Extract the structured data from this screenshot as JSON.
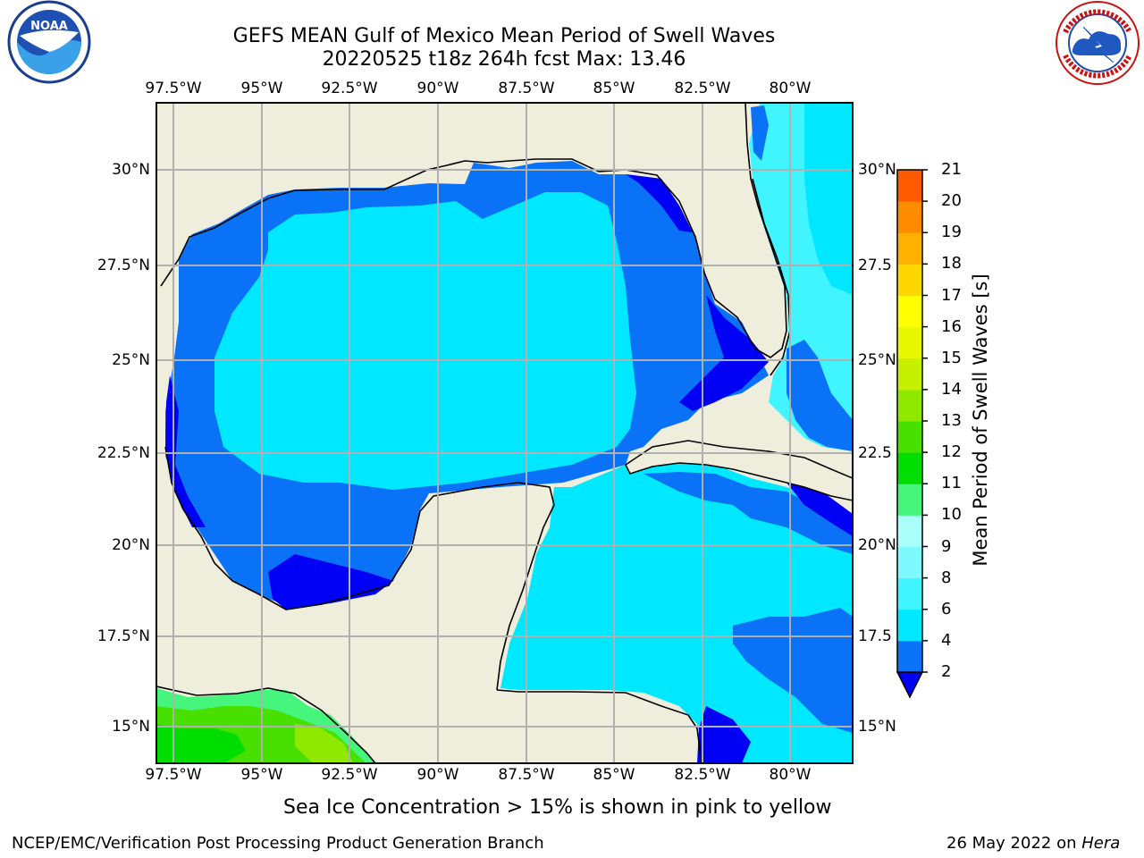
{
  "header": {
    "title": "GEFS MEAN Gulf of Mexico Mean Period of Swell Waves",
    "subtitle": "20220525 t18z 264h fcst   Max: 13.46"
  },
  "logos": {
    "left": {
      "icon": "noaa-logo-icon",
      "text": "NOAA"
    },
    "right": {
      "icon": "nws-logo-icon",
      "text": "NATIONAL WEATHER SERVICE"
    }
  },
  "map": {
    "lon_labels": [
      "97.5°W",
      "95°W",
      "92.5°W",
      "90°W",
      "87.5°W",
      "85°W",
      "82.5°W",
      "80°W"
    ],
    "lat_labels_left": [
      "30°N",
      "27.5°N",
      "25°N",
      "22.5°N",
      "20°N",
      "17.5°N",
      "15°N"
    ],
    "lat_labels_right": [
      "30°N",
      "27.5",
      "25°N",
      "22.5",
      "20°N",
      "17.5",
      "15°N"
    ]
  },
  "colorbar": {
    "title": "Mean Period of Swell Waves [s]",
    "ticks": [
      "2",
      "4",
      "6",
      "8",
      "9",
      "10",
      "11",
      "12",
      "13",
      "14",
      "15",
      "16",
      "17",
      "18",
      "19",
      "20",
      "21"
    ],
    "colors": [
      "#0a72f7",
      "#00e8ff",
      "#40f5ff",
      "#7efaff",
      "#aafffb",
      "#45f57c",
      "#00dd00",
      "#48e000",
      "#8fe800",
      "#c6f000",
      "#e8f800",
      "#ffff00",
      "#ffd700",
      "#ffb000",
      "#ff8c00",
      "#ff5a00",
      "#ff2000",
      "#ff0000"
    ],
    "under_color": "#0000f5"
  },
  "chart_data": {
    "type": "heatmap",
    "title": "GEFS MEAN Gulf of Mexico Mean Period of Swell Waves",
    "subtitle": "20220525 t18z 264h fcst   Max: 13.46",
    "units": "s",
    "x_range_lon": [
      -98.5,
      -78.75
    ],
    "y_range_lat": [
      14,
      31.6
    ],
    "max_value": 13.46,
    "levels": [
      2,
      4,
      6,
      8,
      9,
      10,
      11,
      12,
      13,
      14,
      15,
      16,
      17,
      18,
      19,
      20,
      21
    ],
    "grid": true
  },
  "footer": {
    "note": "Sea Ice Concentration > 15% is shown in pink to yellow",
    "credit_left": "NCEP/EMC/Verification Post Processing Product Generation Branch",
    "credit_date": "26 May 2022 on ",
    "credit_host": "Hera"
  }
}
